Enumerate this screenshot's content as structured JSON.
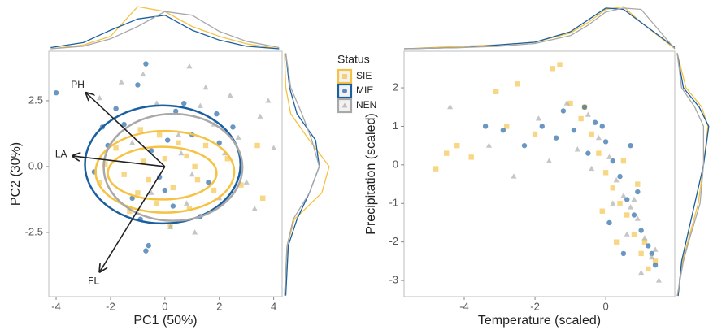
{
  "chart_data": [
    {
      "type": "scatter",
      "xlabel": "PC1 (50%)",
      "ylabel": "PC2 (30%)",
      "legend_title": "Status",
      "xlim": [
        -4.27,
        4.31
      ],
      "ylim": [
        -4.94,
        4.38
      ],
      "xticks": [
        -4,
        -2,
        0,
        2,
        4
      ],
      "yticks": [
        -2.5,
        {
          "value": 0,
          "label": "0.0"
        },
        2.5
      ],
      "arrows": [
        {
          "label": "PH",
          "x": -2.9,
          "y": 2.8
        },
        {
          "label": "LA",
          "x": -3.4,
          "y": 0.4
        },
        {
          "label": "FL",
          "x": -2.4,
          "y": -4.0
        }
      ],
      "series": [
        {
          "name": "SIE",
          "color": "#f5c242",
          "marker": "square",
          "x": [
            -1.5,
            -0.8,
            0.3,
            1.2,
            -2.2,
            0.8,
            -0.3,
            1.8,
            -1.0,
            0.5,
            2.3,
            -2.4,
            0.0,
            1.5,
            -0.6,
            3.6,
            -1.8,
            0.9,
            2.8,
            -0.2,
            1.1,
            -1.3,
            3.4,
            0.2,
            -0.9
          ],
          "y": [
            -0.3,
            0.2,
            -0.8,
            -0.5,
            0.1,
            0.4,
            -1.4,
            -0.9,
            -1.0,
            0.9,
            0.3,
            -0.6,
            0.3,
            0.8,
            -0.5,
            -1.2,
            0.7,
            -1.6,
            -0.7,
            1.2,
            0.0,
            -1.7,
            0.8,
            -2.2,
            1.4
          ],
          "ellipses": [
            {
              "cx": 0,
              "cy": -0.2,
              "rx": 2.55,
              "ry": 1.55
            },
            {
              "cx": -0.1,
              "cy": -0.25,
              "rx": 2.0,
              "ry": 1.0
            }
          ]
        },
        {
          "name": "MIE",
          "color": "#1a5fa0",
          "marker": "circle",
          "x": [
            -4.0,
            -0.7,
            -0.6,
            -0.7,
            -1.5,
            -2.1,
            0.4,
            -0.2,
            1.0,
            -1.2,
            0.3,
            2.0,
            -2.6,
            -0.5,
            1.6,
            0.7,
            -1.8,
            2.5,
            -0.9,
            0.1,
            1.3,
            -2.3,
            0.0,
            1.9,
            -1.0
          ],
          "y": [
            2.8,
            3.9,
            -3.0,
            -3.2,
            1.6,
            0.8,
            2.1,
            -0.4,
            1.2,
            -1.2,
            -1.5,
            0.9,
            -0.2,
            0.6,
            -0.6,
            2.4,
            2.2,
            1.5,
            -2.0,
            1.0,
            -1.9,
            1.5,
            -0.9,
            2.0,
            3.1
          ],
          "ellipses": [
            {
              "cx": -0.08,
              "cy": 0.08,
              "rx": 2.86,
              "ry": 2.24
            }
          ]
        },
        {
          "name": "NEN",
          "color": "#a8a8a8",
          "marker": "triangle",
          "x": [
            0.5,
            2.4,
            1.5,
            -0.8,
            3.5,
            1.0,
            2.2,
            -0.3,
            0.8,
            3.0,
            1.8,
            -1.2,
            0.2,
            4.0,
            2.7,
            -0.5,
            1.3,
            0.6,
            3.3,
            -1.6,
            2.0,
            0.9,
            -2.4,
            1.1,
            3.8
          ],
          "y": [
            1.2,
            2.7,
            3.0,
            3.5,
            1.9,
            -0.3,
            0.5,
            2.4,
            -1.4,
            -0.6,
            1.6,
            0.9,
            -2.3,
            0.7,
            1.1,
            -1.0,
            2.3,
            0.5,
            -1.6,
            3.2,
            -1.2,
            3.8,
            2.6,
            -2.5,
            2.5
          ],
          "ellipses": [
            {
              "cx": 0.3,
              "cy": -0.03,
              "rx": 2.55,
              "ry": 2.03
            }
          ]
        }
      ],
      "x_density": {
        "x": [
          -4.2,
          -3,
          -2,
          -1,
          0,
          1,
          2,
          3,
          4.2
        ],
        "lim": [
          0,
          0.36
        ],
        "values": [
          [
            0,
            0.03,
            0.1,
            0.34,
            0.3,
            0.18,
            0.1,
            0.04,
            0
          ],
          [
            0.01,
            0.05,
            0.15,
            0.24,
            0.27,
            0.15,
            0.07,
            0.02,
            0
          ],
          [
            0,
            0.02,
            0.08,
            0.18,
            0.3,
            0.27,
            0.14,
            0.06,
            0.01
          ]
        ]
      },
      "y_density": {
        "y": [
          -4.9,
          -3,
          -2,
          -1,
          0,
          1,
          2,
          3,
          4.3
        ],
        "lim": [
          0,
          0.38
        ],
        "values": [
          [
            0,
            0.02,
            0.08,
            0.3,
            0.36,
            0.2,
            0.05,
            0.01,
            0
          ],
          [
            0.01,
            0.03,
            0.1,
            0.2,
            0.28,
            0.25,
            0.1,
            0.04,
            0.01
          ],
          [
            0,
            0.02,
            0.07,
            0.2,
            0.28,
            0.22,
            0.14,
            0.05,
            0.01
          ]
        ]
      }
    },
    {
      "type": "scatter",
      "xlabel": "Temperature (scaled)",
      "ylabel": "Precipitation (scaled)",
      "xlim": [
        -5.7,
        1.95
      ],
      "ylim": [
        -3.42,
        2.95
      ],
      "xticks": [
        -4,
        -2,
        0
      ],
      "yticks": [
        -3,
        -2,
        -1,
        0,
        1,
        2
      ],
      "series": [
        {
          "color": "#f5c242",
          "marker": "square",
          "x": [
            -4.8,
            -4.5,
            -4.2,
            -3.8,
            -3.1,
            -2.8,
            -2.5,
            -2.0,
            -1.5,
            -1.3,
            -1.0,
            -0.7,
            -0.4,
            -0.2,
            0.0,
            0.2,
            0.4,
            0.6,
            0.8,
            -0.1,
            0.3,
            1.0,
            1.2,
            1.1,
            -0.6,
            0.5,
            0.9,
            1.4
          ],
          "y": [
            -0.1,
            0.3,
            0.5,
            0.2,
            1.9,
            1.0,
            2.1,
            0.8,
            2.5,
            2.6,
            1.6,
            1.2,
            0.8,
            0.3,
            -0.2,
            -0.6,
            -1.0,
            -1.3,
            -1.8,
            -1.2,
            -2.0,
            -2.3,
            -2.7,
            -2.0,
            1.5,
            0.1,
            -0.5,
            -2.5
          ]
        },
        {
          "color": "#1a5fa0",
          "marker": "circle",
          "x": [
            -3.4,
            -2.9,
            -2.3,
            -1.8,
            -1.2,
            -0.9,
            -0.6,
            -0.3,
            0.0,
            0.2,
            0.4,
            0.6,
            0.8,
            1.0,
            1.2,
            1.4,
            0.1,
            0.5,
            -0.5,
            0.7,
            1.3,
            -1.4,
            -0.1,
            0.9
          ],
          "y": [
            1.0,
            0.9,
            0.5,
            1.0,
            1.4,
            0.9,
            1.5,
            1.1,
            0.6,
            0.1,
            -0.3,
            -0.9,
            -1.3,
            -1.7,
            -2.1,
            -2.6,
            -1.5,
            -2.3,
            0.3,
            0.5,
            -2.3,
            0.7,
            1.0,
            -0.7
          ]
        },
        {
          "color": "#a8a8a8",
          "marker": "triangle",
          "x": [
            -4.4,
            -3.3,
            -2.6,
            -1.9,
            -1.1,
            -0.8,
            -0.5,
            -0.2,
            0.1,
            0.3,
            0.5,
            0.7,
            0.9,
            1.1,
            1.3,
            1.5,
            0.2,
            0.6,
            -0.4,
            1.0,
            0.8,
            -1.6,
            1.4
          ],
          "y": [
            1.5,
            0.5,
            -0.3,
            1.2,
            1.6,
            0.4,
            1.3,
            0.7,
            0.2,
            -0.4,
            -0.8,
            -1.1,
            -1.4,
            -1.9,
            -2.4,
            -3.0,
            -1.0,
            -1.8,
            -0.1,
            -2.8,
            -0.9,
            0.1,
            -2.2
          ]
        }
      ],
      "x_density": {
        "x": [
          -5.7,
          -4,
          -3,
          -2,
          -1,
          -0.5,
          0,
          0.5,
          1,
          1.95
        ],
        "lim": [
          0,
          0.34
        ],
        "values": [
          [
            0,
            0.02,
            0.03,
            0.05,
            0.12,
            0.2,
            0.3,
            0.32,
            0.2,
            0
          ],
          [
            0,
            0.01,
            0.03,
            0.05,
            0.13,
            0.22,
            0.31,
            0.3,
            0.2,
            0.01
          ],
          [
            0,
            0.01,
            0.02,
            0.04,
            0.1,
            0.18,
            0.28,
            0.31,
            0.3,
            0
          ]
        ]
      },
      "y_density": {
        "y": [
          -3.4,
          -2.5,
          -2,
          -1,
          0,
          1,
          1.5,
          2,
          2.9
        ],
        "lim": [
          0,
          0.38
        ],
        "values": [
          [
            0.01,
            0.06,
            0.12,
            0.24,
            0.3,
            0.35,
            0.28,
            0.1,
            0
          ],
          [
            0.01,
            0.05,
            0.1,
            0.2,
            0.3,
            0.36,
            0.25,
            0.07,
            0
          ],
          [
            0,
            0.07,
            0.13,
            0.26,
            0.3,
            0.3,
            0.2,
            0.05,
            0
          ]
        ]
      }
    }
  ]
}
